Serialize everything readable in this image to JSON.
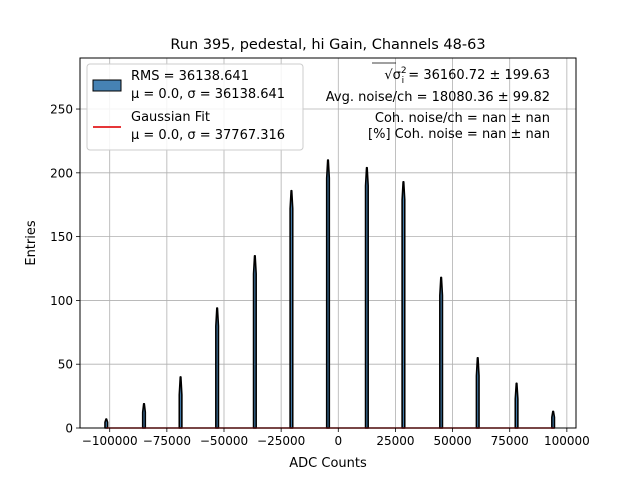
{
  "chart_data": {
    "type": "bar",
    "title": "Run 395, pedestal, hi Gain, Channels 48-63",
    "xlabel": "ADC Counts",
    "ylabel": "Entries",
    "xlim": [
      -113000,
      104000
    ],
    "ylim": [
      0,
      290
    ],
    "grid": true,
    "x_ticks": [
      -100000,
      -75000,
      -50000,
      -25000,
      0,
      25000,
      50000,
      75000,
      100000
    ],
    "x_tick_labels": [
      "−100000",
      "−75000",
      "−50000",
      "−25000",
      "0",
      "25000",
      "50000",
      "75000",
      "100000"
    ],
    "y_ticks": [
      0,
      50,
      100,
      150,
      200,
      250
    ],
    "y_tick_labels": [
      "0",
      "50",
      "100",
      "150",
      "200",
      "250"
    ],
    "series": [
      {
        "name": "RMS = 36138.641",
        "name_line2": "μ = 0.0, σ = 36138.641",
        "kind": "histogram-spikes",
        "color": "#4682b4",
        "edgecolor": "#000000",
        "x": [
          -101500,
          -85000,
          -69000,
          -53000,
          -36500,
          -20500,
          -4500,
          12500,
          28500,
          45000,
          61000,
          78000,
          94000
        ],
        "values": [
          7,
          19,
          40,
          94,
          135,
          186,
          210,
          204,
          193,
          118,
          55,
          35,
          13
        ]
      },
      {
        "name": "Gaussian Fit",
        "name_line2": "μ = 0.0, σ = 37767.316",
        "kind": "line",
        "color": "#e31a1c",
        "mu": 0.0,
        "sigma": 37767.316,
        "values_level": 0
      }
    ],
    "legend_position": "top-left",
    "annotations": {
      "sigma_prefix": "√σ",
      "sigma_sup": "2",
      "sigma_sub": "i",
      "sigma_value": " = 36160.72 ± 199.63",
      "avg_noise": "Avg. noise/ch = 18080.36 ± 99.82",
      "coh_noise": "Coh. noise/ch = nan ± nan",
      "coh_noise_pct": "[%] Coh. noise = nan ± nan"
    }
  }
}
